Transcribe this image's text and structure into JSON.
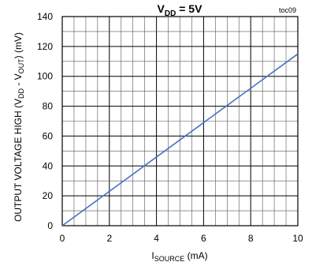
{
  "chart_data": {
    "type": "line",
    "title": {
      "main": "V",
      "sub": "DD",
      "rest": " = 5V"
    },
    "tag": "toc09",
    "xlabel": {
      "main": "I",
      "sub": "SOURCE",
      "rest": " (mA)"
    },
    "ylabel": {
      "p1": "OUTPUT VOLTAGE HIGH (V",
      "s1": "DD",
      "p2": " - V",
      "s2": "OUT",
      "p3": ") (mV)"
    },
    "xlim": [
      0,
      10
    ],
    "ylim": [
      0,
      140
    ],
    "xticks": [
      0,
      2,
      4,
      6,
      8,
      10
    ],
    "yticks": [
      0,
      20,
      40,
      60,
      80,
      100,
      120,
      140
    ],
    "x_minor_step": 0.5,
    "y_minor_step": 10,
    "grid": true,
    "line_color": "#4472C4",
    "series": [
      {
        "x": [
          0,
          2,
          4,
          6,
          8,
          10
        ],
        "y": [
          0,
          23,
          46,
          69,
          92,
          115
        ]
      }
    ]
  }
}
